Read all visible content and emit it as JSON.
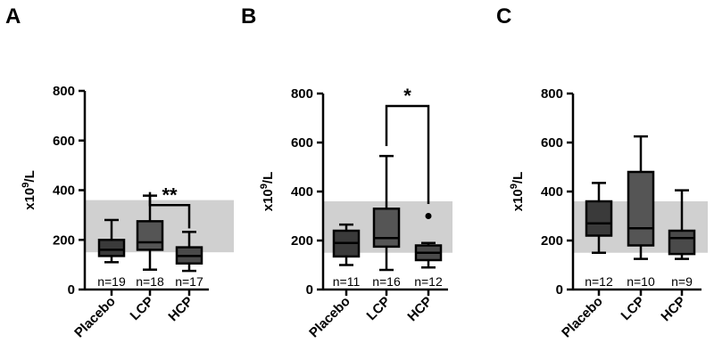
{
  "chart_data": [
    {
      "panel": "A",
      "type": "box",
      "ylabel": "x10⁹/L",
      "ylabel_base": "x10",
      "ylabel_exp": "9",
      "ylabel_unit": "/L",
      "ylim": [
        0,
        800
      ],
      "yticks": [
        "0",
        "200",
        "400",
        "600",
        "800"
      ],
      "reference_band": [
        150,
        360
      ],
      "categories": [
        "Placebo",
        "LCP",
        "HCP"
      ],
      "boxes": [
        {
          "min": 110,
          "q1": 135,
          "median": 160,
          "q3": 200,
          "max": 280,
          "n": "n=19",
          "color": "#3a3a3a"
        },
        {
          "min": 80,
          "q1": 160,
          "median": 190,
          "q3": 275,
          "max": 378,
          "n": "n=18",
          "color": "#555555"
        },
        {
          "min": 75,
          "q1": 105,
          "median": 135,
          "q3": 170,
          "max": 232,
          "n": "n=17",
          "color": "#4a4a4a"
        }
      ],
      "outliers": [],
      "comparison": {
        "from": 1,
        "to": 2,
        "y": 390,
        "label": "**"
      }
    },
    {
      "panel": "B",
      "type": "box",
      "ylabel": "x10⁹/L",
      "ylabel_base": "x10",
      "ylabel_exp": "9",
      "ylabel_unit": "/L",
      "ylim": [
        0,
        800
      ],
      "yticks": [
        "0",
        "200",
        "400",
        "600",
        "800"
      ],
      "reference_band": [
        150,
        360
      ],
      "categories": [
        "Placebo",
        "LCP",
        "HCP"
      ],
      "boxes": [
        {
          "min": 100,
          "q1": 135,
          "median": 190,
          "q3": 240,
          "max": 265,
          "n": "n=11",
          "color": "#3a3a3a"
        },
        {
          "min": 80,
          "q1": 175,
          "median": 210,
          "q3": 330,
          "max": 545,
          "n": "n=16",
          "color": "#555555"
        },
        {
          "min": 90,
          "q1": 120,
          "median": 150,
          "q3": 180,
          "max": 190,
          "n": "n=12",
          "color": "#4a4a4a"
        }
      ],
      "outliers": [
        {
          "box": 2,
          "value": 300
        }
      ],
      "comparison": {
        "from": 1,
        "to": 2,
        "y": 800,
        "label": "*"
      }
    },
    {
      "panel": "C",
      "type": "box",
      "ylabel": "x10⁹/L",
      "ylabel_base": "x10",
      "ylabel_exp": "9",
      "ylabel_unit": "/L",
      "ylim": [
        0,
        800
      ],
      "yticks": [
        "0",
        "200",
        "400",
        "600",
        "800"
      ],
      "reference_band": [
        150,
        360
      ],
      "categories": [
        "Placebo",
        "LCP",
        "HCP"
      ],
      "boxes": [
        {
          "min": 150,
          "q1": 220,
          "median": 270,
          "q3": 360,
          "max": 435,
          "n": "n=12",
          "color": "#3a3a3a"
        },
        {
          "min": 125,
          "q1": 180,
          "median": 250,
          "q3": 480,
          "max": 625,
          "n": "n=10",
          "color": "#555555"
        },
        {
          "min": 125,
          "q1": 145,
          "median": 210,
          "q3": 240,
          "max": 405,
          "n": "n=9",
          "color": "#4a4a4a"
        }
      ],
      "outliers": [],
      "comparison": null
    }
  ],
  "colors": {
    "band": "#d0d0d0",
    "axis": "#000000"
  }
}
